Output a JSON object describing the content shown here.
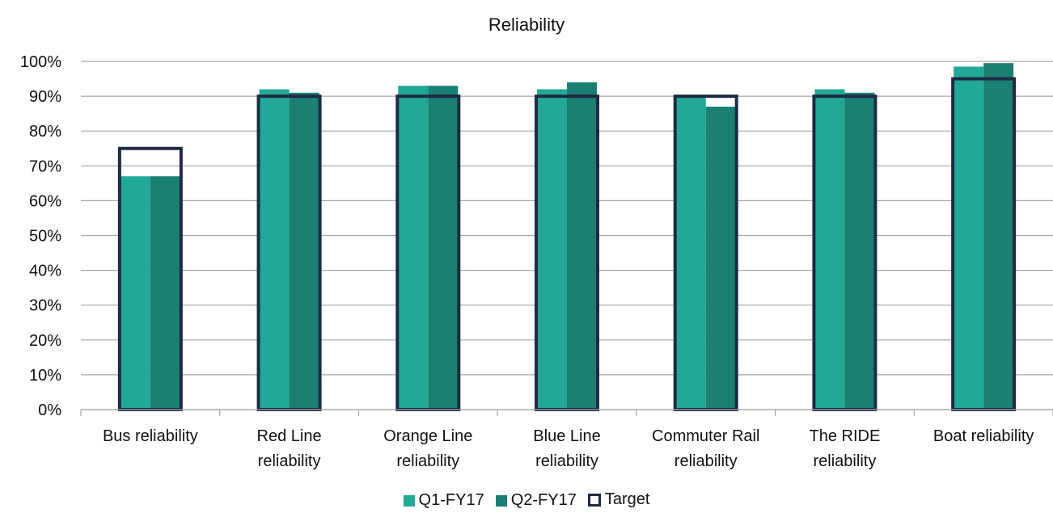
{
  "chart_data": {
    "type": "bar",
    "title": "Reliability",
    "categories": [
      [
        "Bus reliability"
      ],
      [
        "Red Line",
        "reliability"
      ],
      [
        "Orange Line",
        "reliability"
      ],
      [
        "Blue Line",
        "reliability"
      ],
      [
        "Commuter Rail",
        "reliability"
      ],
      [
        "The RIDE",
        "reliability"
      ],
      [
        "Boat reliability"
      ]
    ],
    "series": [
      {
        "name": "Q1-FY17",
        "values": [
          67,
          92,
          93,
          92,
          90,
          92,
          98.5
        ]
      },
      {
        "name": "Q2-FY17",
        "values": [
          67,
          91,
          93,
          94,
          87,
          91,
          99.5
        ]
      },
      {
        "name": "Target",
        "values": [
          75,
          90,
          90,
          90,
          90,
          90,
          95
        ]
      }
    ],
    "ylim": [
      0,
      100
    ],
    "yticks": [
      "0%",
      "10%",
      "20%",
      "30%",
      "40%",
      "50%",
      "60%",
      "70%",
      "80%",
      "90%",
      "100%"
    ],
    "colors": {
      "Q1-FY17": "#22a896",
      "Q2-FY17": "#1b7f72",
      "Target": "#1f2a44",
      "grid": "#a6a6a6"
    },
    "grid": true,
    "legend_position": "bottom"
  }
}
